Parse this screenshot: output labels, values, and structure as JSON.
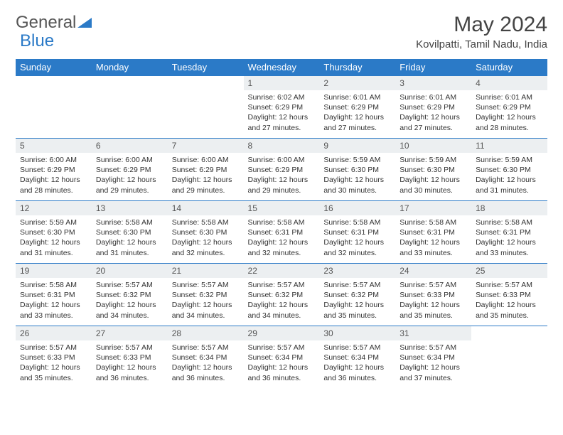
{
  "brand": {
    "part1": "General",
    "part2": "Blue"
  },
  "title": "May 2024",
  "location": "Kovilpatti, Tamil Nadu, India",
  "colors": {
    "header_bg": "#2b7ac7",
    "daynum_bg": "#eceff1",
    "border": "#2b7ac7",
    "text": "#333333"
  },
  "dayHeaders": [
    "Sunday",
    "Monday",
    "Tuesday",
    "Wednesday",
    "Thursday",
    "Friday",
    "Saturday"
  ],
  "weeks": [
    [
      null,
      null,
      null,
      {
        "n": "1",
        "sr": "6:02 AM",
        "ss": "6:29 PM",
        "dl": "12 hours and 27 minutes."
      },
      {
        "n": "2",
        "sr": "6:01 AM",
        "ss": "6:29 PM",
        "dl": "12 hours and 27 minutes."
      },
      {
        "n": "3",
        "sr": "6:01 AM",
        "ss": "6:29 PM",
        "dl": "12 hours and 27 minutes."
      },
      {
        "n": "4",
        "sr": "6:01 AM",
        "ss": "6:29 PM",
        "dl": "12 hours and 28 minutes."
      }
    ],
    [
      {
        "n": "5",
        "sr": "6:00 AM",
        "ss": "6:29 PM",
        "dl": "12 hours and 28 minutes."
      },
      {
        "n": "6",
        "sr": "6:00 AM",
        "ss": "6:29 PM",
        "dl": "12 hours and 29 minutes."
      },
      {
        "n": "7",
        "sr": "6:00 AM",
        "ss": "6:29 PM",
        "dl": "12 hours and 29 minutes."
      },
      {
        "n": "8",
        "sr": "6:00 AM",
        "ss": "6:29 PM",
        "dl": "12 hours and 29 minutes."
      },
      {
        "n": "9",
        "sr": "5:59 AM",
        "ss": "6:30 PM",
        "dl": "12 hours and 30 minutes."
      },
      {
        "n": "10",
        "sr": "5:59 AM",
        "ss": "6:30 PM",
        "dl": "12 hours and 30 minutes."
      },
      {
        "n": "11",
        "sr": "5:59 AM",
        "ss": "6:30 PM",
        "dl": "12 hours and 31 minutes."
      }
    ],
    [
      {
        "n": "12",
        "sr": "5:59 AM",
        "ss": "6:30 PM",
        "dl": "12 hours and 31 minutes."
      },
      {
        "n": "13",
        "sr": "5:58 AM",
        "ss": "6:30 PM",
        "dl": "12 hours and 31 minutes."
      },
      {
        "n": "14",
        "sr": "5:58 AM",
        "ss": "6:30 PM",
        "dl": "12 hours and 32 minutes."
      },
      {
        "n": "15",
        "sr": "5:58 AM",
        "ss": "6:31 PM",
        "dl": "12 hours and 32 minutes."
      },
      {
        "n": "16",
        "sr": "5:58 AM",
        "ss": "6:31 PM",
        "dl": "12 hours and 32 minutes."
      },
      {
        "n": "17",
        "sr": "5:58 AM",
        "ss": "6:31 PM",
        "dl": "12 hours and 33 minutes."
      },
      {
        "n": "18",
        "sr": "5:58 AM",
        "ss": "6:31 PM",
        "dl": "12 hours and 33 minutes."
      }
    ],
    [
      {
        "n": "19",
        "sr": "5:58 AM",
        "ss": "6:31 PM",
        "dl": "12 hours and 33 minutes."
      },
      {
        "n": "20",
        "sr": "5:57 AM",
        "ss": "6:32 PM",
        "dl": "12 hours and 34 minutes."
      },
      {
        "n": "21",
        "sr": "5:57 AM",
        "ss": "6:32 PM",
        "dl": "12 hours and 34 minutes."
      },
      {
        "n": "22",
        "sr": "5:57 AM",
        "ss": "6:32 PM",
        "dl": "12 hours and 34 minutes."
      },
      {
        "n": "23",
        "sr": "5:57 AM",
        "ss": "6:32 PM",
        "dl": "12 hours and 35 minutes."
      },
      {
        "n": "24",
        "sr": "5:57 AM",
        "ss": "6:33 PM",
        "dl": "12 hours and 35 minutes."
      },
      {
        "n": "25",
        "sr": "5:57 AM",
        "ss": "6:33 PM",
        "dl": "12 hours and 35 minutes."
      }
    ],
    [
      {
        "n": "26",
        "sr": "5:57 AM",
        "ss": "6:33 PM",
        "dl": "12 hours and 35 minutes."
      },
      {
        "n": "27",
        "sr": "5:57 AM",
        "ss": "6:33 PM",
        "dl": "12 hours and 36 minutes."
      },
      {
        "n": "28",
        "sr": "5:57 AM",
        "ss": "6:34 PM",
        "dl": "12 hours and 36 minutes."
      },
      {
        "n": "29",
        "sr": "5:57 AM",
        "ss": "6:34 PM",
        "dl": "12 hours and 36 minutes."
      },
      {
        "n": "30",
        "sr": "5:57 AM",
        "ss": "6:34 PM",
        "dl": "12 hours and 36 minutes."
      },
      {
        "n": "31",
        "sr": "5:57 AM",
        "ss": "6:34 PM",
        "dl": "12 hours and 37 minutes."
      },
      null
    ]
  ],
  "labels": {
    "sunrise": "Sunrise: ",
    "sunset": "Sunset: ",
    "daylight": "Daylight: "
  }
}
